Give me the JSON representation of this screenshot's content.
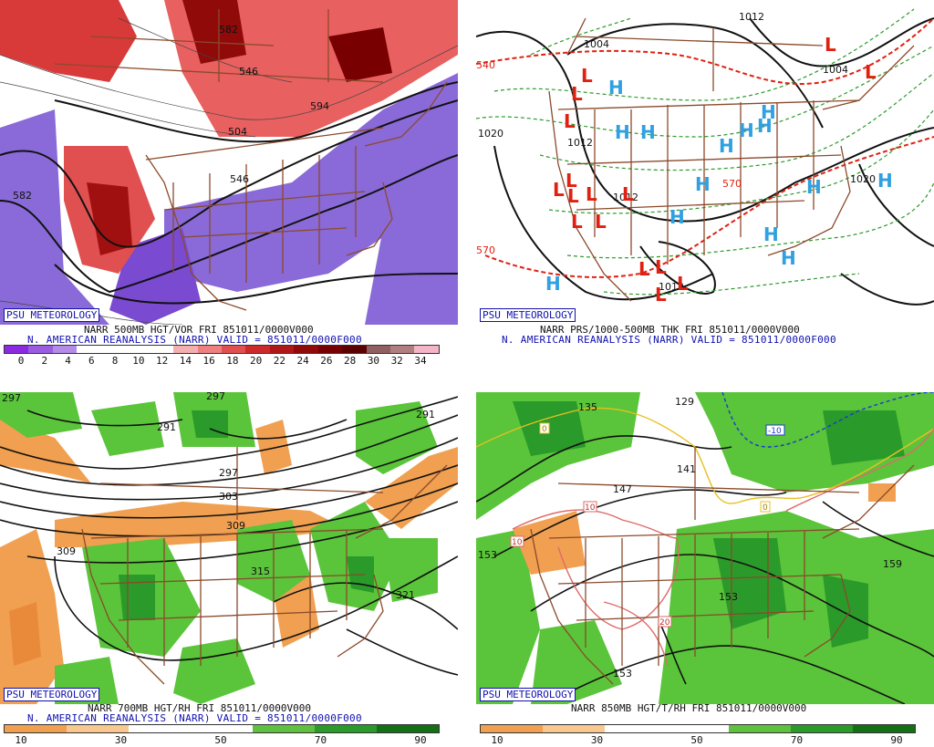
{
  "panels": [
    {
      "id": "p1",
      "badge": "PSU METEOROLOGY",
      "caption1": "NARR 500MB HGT/VOR FRI 851011/0000V000",
      "caption2": "N. AMERICAN REANALYSIS (NARR) VALID = 851011/0000F000",
      "colorbar": {
        "labels": [
          "0",
          "2",
          "4",
          "6",
          "8",
          "10",
          "12",
          "14",
          "16",
          "18",
          "20",
          "22",
          "24",
          "26",
          "28",
          "30",
          "32",
          "34"
        ],
        "colors": [
          "#8a2be2",
          "#9a5ce0",
          "#b48ce8",
          "#ffffff",
          "#ffffff",
          "#ffffff",
          "#ffffff",
          "#f4b0b0",
          "#ee8080",
          "#e05050",
          "#cc2a2a",
          "#b01818",
          "#900a0a",
          "#780000",
          "#5c0000",
          "#906060",
          "#b08080",
          "#f4b6c6"
        ]
      },
      "contour_labels": [
        "582",
        "546",
        "582",
        "504",
        "546",
        "594"
      ]
    },
    {
      "id": "p2",
      "badge": "PSU METEOROLOGY",
      "caption1": "NARR PRS/1000-500MB THK FRI 851011/0000V000",
      "caption2": "N. AMERICAN REANALYSIS (NARR) VALID = 851011/0000F000",
      "contour_labels": [
        "1012",
        "1004",
        "1020",
        "1012",
        "540",
        "570",
        "1020",
        "1012",
        "570",
        "1012",
        "1004"
      ],
      "highs": 14,
      "lows": 16
    },
    {
      "id": "p3",
      "badge": "PSU METEOROLOGY",
      "caption1": "NARR 700MB HGT/RH FRI 851011/0000V000",
      "caption2": "N. AMERICAN REANALYSIS (NARR) VALID = 851011/0000F000",
      "colorbar": {
        "labels": [
          "10",
          "30",
          "50",
          "70",
          "90"
        ],
        "colors": [
          "#f0a050",
          "#f8c890",
          "#ffffff",
          "#ffffff",
          "#60c040",
          "#2a9a2a",
          "#157015"
        ]
      },
      "contour_labels": [
        "297",
        "291",
        "297",
        "303",
        "309",
        "309",
        "315",
        "321",
        "291",
        "297"
      ]
    },
    {
      "id": "p4",
      "badge": "PSU METEOROLOGY",
      "caption1": "NARR 850MB HGT/T/RH FRI 851011/0000V000",
      "colorbar": {
        "labels": [
          "10",
          "30",
          "50",
          "70",
          "90"
        ],
        "colors": [
          "#f0a050",
          "#f8c890",
          "#ffffff",
          "#ffffff",
          "#60c040",
          "#2a9a2a",
          "#157015"
        ]
      },
      "contour_labels": [
        "135",
        "129",
        "141",
        "147",
        "153",
        "153",
        "153",
        "159"
      ],
      "temp_labels": [
        "0",
        "10",
        "10",
        "20",
        "0",
        "-10"
      ]
    }
  ],
  "symbols": {
    "high": "H",
    "low": "L"
  },
  "colors": {
    "border": "#8b4a2b",
    "contour": "#111111",
    "high": "#30a0e0",
    "low": "#e02010",
    "thickness_green": "#2a9a2a",
    "thickness_red": "#e02010",
    "badge_blue": "#1010b0"
  }
}
